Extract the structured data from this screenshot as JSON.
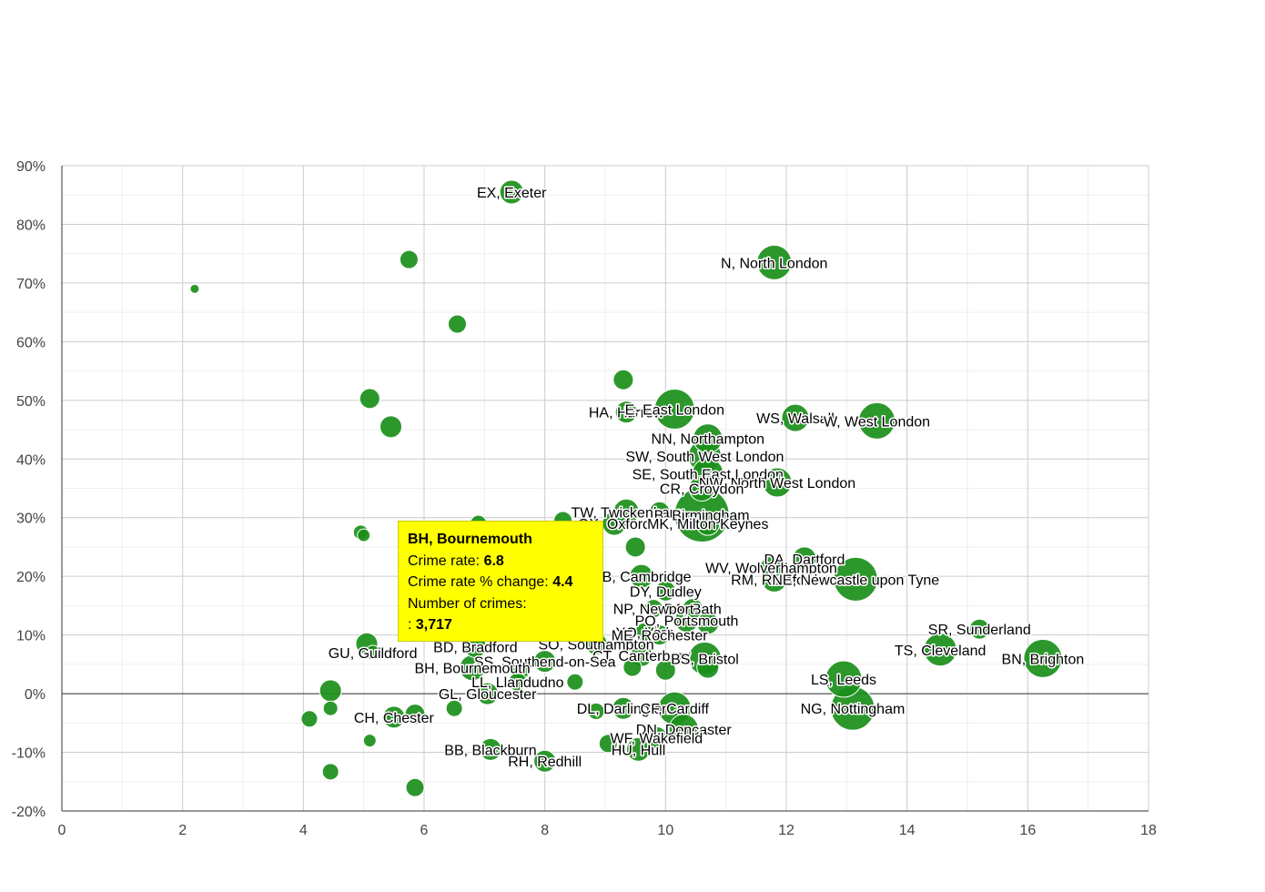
{
  "chart_data": {
    "type": "scatter",
    "title": "",
    "xlabel": "",
    "ylabel": "",
    "xlim": [
      0,
      18
    ],
    "ylim": [
      -20,
      90
    ],
    "x_ticks": [
      "0",
      "2",
      "4",
      "6",
      "8",
      "10",
      "12",
      "14",
      "16",
      "18"
    ],
    "y_ticks": [
      "-20%",
      "-10%",
      "0%",
      "10%",
      "20%",
      "30%",
      "40%",
      "50%",
      "60%",
      "70%",
      "80%",
      "90%"
    ],
    "grid": true,
    "colors": {
      "bubble": "#1a8f1a",
      "grid": "#cccccc",
      "axis": "#333333"
    },
    "points": [
      {
        "label": "EX, Exeter",
        "x": 7.45,
        "y": 85.5,
        "r": 13
      },
      {
        "label": "N, North London",
        "x": 11.8,
        "y": 73.5,
        "r": 19
      },
      {
        "label": "",
        "x": 5.75,
        "y": 74,
        "r": 10
      },
      {
        "label": "",
        "x": 2.2,
        "y": 69,
        "r": 5
      },
      {
        "label": "",
        "x": 6.55,
        "y": 63,
        "r": 10
      },
      {
        "label": "",
        "x": 9.3,
        "y": 53.5,
        "r": 11
      },
      {
        "label": "",
        "x": 5.1,
        "y": 50.3,
        "r": 11
      },
      {
        "label": "",
        "x": 5.45,
        "y": 45.5,
        "r": 12
      },
      {
        "label": "HA, Harrow",
        "x": 9.35,
        "y": 48,
        "r": 12
      },
      {
        "label": "E, East London",
        "x": 10.15,
        "y": 48.5,
        "r": 22
      },
      {
        "label": "WS, Walsall",
        "x": 12.15,
        "y": 47,
        "r": 15
      },
      {
        "label": "W, West London",
        "x": 13.5,
        "y": 46.5,
        "r": 20
      },
      {
        "label": "NN, Northampton",
        "x": 10.7,
        "y": 43.5,
        "r": 16
      },
      {
        "label": "SW, South West London",
        "x": 10.65,
        "y": 40.5,
        "r": 18
      },
      {
        "label": "SE, South East London",
        "x": 10.7,
        "y": 37.5,
        "r": 17
      },
      {
        "label": "NW, North West London",
        "x": 11.85,
        "y": 36,
        "r": 16
      },
      {
        "label": "CR, Croydon",
        "x": 10.6,
        "y": 35,
        "r": 14
      },
      {
        "label": "TW, Twickenham",
        "x": 9.35,
        "y": 31,
        "r": 14
      },
      {
        "label": "B, Birmingham",
        "x": 10.6,
        "y": 30.5,
        "r": 30
      },
      {
        "label": "",
        "x": 9.9,
        "y": 31,
        "r": 11
      },
      {
        "label": "OX, Oxford",
        "x": 9.15,
        "y": 29,
        "r": 13
      },
      {
        "label": "MK, Milton Keynes",
        "x": 10.7,
        "y": 29,
        "r": 13
      },
      {
        "label": "",
        "x": 8.3,
        "y": 29.5,
        "r": 10
      },
      {
        "label": "",
        "x": 4.95,
        "y": 27.5,
        "r": 8
      },
      {
        "label": "",
        "x": 5.0,
        "y": 27,
        "r": 7
      },
      {
        "label": "",
        "x": 6.9,
        "y": 29,
        "r": 9
      },
      {
        "label": "",
        "x": 9.5,
        "y": 25,
        "r": 11
      },
      {
        "label": "DA, Dartford",
        "x": 12.3,
        "y": 23,
        "r": 13
      },
      {
        "label": "WV, Wolverhampton",
        "x": 11.75,
        "y": 21.5,
        "r": 12
      },
      {
        "label": "RM, Romford",
        "x": 11.8,
        "y": 19.5,
        "r": 14
      },
      {
        "label": "NE, Newcastle upon Tyne",
        "x": 13.15,
        "y": 19.5,
        "r": 24
      },
      {
        "label": "CB, Cambridge",
        "x": 9.6,
        "y": 20,
        "r": 13
      },
      {
        "label": "DY, Dudley",
        "x": 10.0,
        "y": 17.5,
        "r": 11
      },
      {
        "label": "BA, Bath",
        "x": 10.45,
        "y": 14.5,
        "r": 11
      },
      {
        "label": "NP, Newport",
        "x": 9.8,
        "y": 14.5,
        "r": 10
      },
      {
        "label": "PO, Portsmouth",
        "x": 10.35,
        "y": 12.5,
        "r": 13
      },
      {
        "label": "",
        "x": 10.7,
        "y": 12,
        "r": 12
      },
      {
        "label": "YO, York",
        "x": 9.65,
        "y": 10.5,
        "r": 10
      },
      {
        "label": "ME, Rochester",
        "x": 9.9,
        "y": 10,
        "r": 11
      },
      {
        "label": "SO, Southampton",
        "x": 8.85,
        "y": 8.5,
        "r": 12
      },
      {
        "label": "CT, Canterbury",
        "x": 9.6,
        "y": 6.5,
        "r": 12
      },
      {
        "label": "BS, Bristol",
        "x": 10.65,
        "y": 6,
        "r": 18
      },
      {
        "label": "",
        "x": 10.7,
        "y": 4.5,
        "r": 12
      },
      {
        "label": "",
        "x": 9.45,
        "y": 4.5,
        "r": 10
      },
      {
        "label": "",
        "x": 10.0,
        "y": 4,
        "r": 11
      },
      {
        "label": "SR, Sunderland",
        "x": 15.2,
        "y": 11,
        "r": 11
      },
      {
        "label": "TS, Cleveland",
        "x": 14.55,
        "y": 7.5,
        "r": 18
      },
      {
        "label": "BN, Brighton",
        "x": 16.25,
        "y": 6,
        "r": 21
      },
      {
        "label": "LS, Leeds",
        "x": 12.95,
        "y": 2.5,
        "r": 20
      },
      {
        "label": "NG, Nottingham",
        "x": 13.1,
        "y": -2.5,
        "r": 24
      },
      {
        "label": "",
        "x": 5.05,
        "y": 8.5,
        "r": 12
      },
      {
        "label": "GU, Guildford",
        "x": 5.15,
        "y": 7,
        "r": 8
      },
      {
        "label": "BD, Bradford",
        "x": 6.85,
        "y": 8,
        "r": 12
      },
      {
        "label": "SS, Southend-on-Sea",
        "x": 8.0,
        "y": 5.5,
        "r": 12
      },
      {
        "label": "BH, Bournemouth",
        "x": 6.8,
        "y": 4.4,
        "r": 14
      },
      {
        "label": "",
        "x": 7.6,
        "y": 4,
        "r": 10
      },
      {
        "label": "",
        "x": 8.5,
        "y": 2,
        "r": 9
      },
      {
        "label": "LL, Llandudno",
        "x": 7.55,
        "y": 2,
        "r": 10
      },
      {
        "label": "GL, Gloucester",
        "x": 7.05,
        "y": 0,
        "r": 12
      },
      {
        "label": "",
        "x": 4.45,
        "y": 0.5,
        "r": 12
      },
      {
        "label": "",
        "x": 4.45,
        "y": -2.5,
        "r": 8
      },
      {
        "label": "",
        "x": 6.5,
        "y": -2.5,
        "r": 9
      },
      {
        "label": "",
        "x": 4.1,
        "y": -4.3,
        "r": 9
      },
      {
        "label": "CH, Chester",
        "x": 5.5,
        "y": -4,
        "r": 12
      },
      {
        "label": "",
        "x": 5.85,
        "y": -3.5,
        "r": 11
      },
      {
        "label": "",
        "x": 5.1,
        "y": -8,
        "r": 7
      },
      {
        "label": "",
        "x": 4.45,
        "y": -13.3,
        "r": 9
      },
      {
        "label": "",
        "x": 5.85,
        "y": -16,
        "r": 10
      },
      {
        "label": "DL, Darlington",
        "x": 9.3,
        "y": -2.5,
        "r": 12
      },
      {
        "label": "CF, Cardiff",
        "x": 10.15,
        "y": -2.5,
        "r": 18
      },
      {
        "label": "",
        "x": 8.85,
        "y": -3,
        "r": 9
      },
      {
        "label": "DN, Doncaster",
        "x": 10.3,
        "y": -6,
        "r": 16
      },
      {
        "label": "WF, Wakefield",
        "x": 9.85,
        "y": -7.5,
        "r": 12
      },
      {
        "label": "",
        "x": 9.05,
        "y": -8.5,
        "r": 10
      },
      {
        "label": "HU, Hull",
        "x": 9.55,
        "y": -9.5,
        "r": 13
      },
      {
        "label": "BB, Blackburn",
        "x": 7.1,
        "y": -9.5,
        "r": 12
      },
      {
        "label": "RH, Redhill",
        "x": 8.0,
        "y": -11.5,
        "r": 12
      }
    ]
  },
  "tooltip": {
    "title": "BH, Bournemouth",
    "crime_rate_label": "Crime rate:",
    "crime_rate_value": "6.8",
    "change_label": "Crime rate % change:",
    "change_value": "4.4",
    "count_label": "Number of crimes:",
    "count_value": "3,717",
    "count_prefix": ":"
  }
}
